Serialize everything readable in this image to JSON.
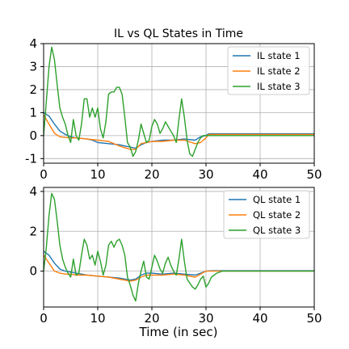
{
  "chart_data": [
    {
      "type": "line",
      "title": "IL vs QL States in Time",
      "xlabel": "",
      "ylabel": "",
      "xlim": [
        0,
        50
      ],
      "ylim": [
        -1.2,
        4.0
      ],
      "xticks": [
        0,
        10,
        20,
        30,
        40,
        50
      ],
      "yticks": [
        -1,
        0,
        1,
        2,
        3,
        4
      ],
      "grid": true,
      "legend_position": "upper-right",
      "series": [
        {
          "name": "IL state 1",
          "color": "#1f77b4",
          "x": [
            0,
            1,
            2,
            3,
            4,
            5,
            6,
            7,
            8,
            9,
            10,
            12,
            14,
            15,
            16,
            17,
            18,
            19,
            20,
            22,
            24,
            26,
            28,
            29,
            30,
            30.5,
            31,
            35,
            40,
            45,
            50
          ],
          "y": [
            1.0,
            0.85,
            0.5,
            0.2,
            0.05,
            -0.05,
            -0.1,
            -0.12,
            -0.15,
            -0.2,
            -0.3,
            -0.35,
            -0.4,
            -0.45,
            -0.5,
            -0.55,
            -0.4,
            -0.3,
            -0.25,
            -0.2,
            -0.2,
            -0.15,
            -0.2,
            -0.05,
            0.0,
            0.08,
            0.08,
            0.08,
            0.08,
            0.08,
            0.08
          ]
        },
        {
          "name": "IL state 2",
          "color": "#ff7f0e",
          "x": [
            0,
            1,
            2,
            3,
            4,
            5,
            6,
            8,
            10,
            12,
            14,
            16,
            17,
            18,
            19,
            20,
            22,
            24,
            26,
            28,
            29,
            30,
            30.5,
            31,
            35,
            40,
            45,
            50
          ],
          "y": [
            0.9,
            0.5,
            0.1,
            -0.05,
            -0.08,
            -0.1,
            -0.1,
            -0.15,
            -0.2,
            -0.25,
            -0.45,
            -0.6,
            -0.6,
            -0.35,
            -0.3,
            -0.25,
            -0.25,
            -0.2,
            -0.2,
            -0.35,
            -0.3,
            -0.1,
            0.05,
            0.05,
            0.05,
            0.05,
            0.05,
            0.05
          ]
        },
        {
          "name": "IL state 3",
          "color": "#2ca02c",
          "x": [
            0,
            0.5,
            1,
            1.5,
            2,
            2.5,
            3,
            3.5,
            4,
            4.5,
            5,
            5.5,
            6,
            6.5,
            7,
            7.5,
            8,
            8.5,
            9,
            9.5,
            10,
            10.5,
            11,
            11.5,
            12,
            12.5,
            13,
            13.5,
            14,
            14.5,
            15,
            15.5,
            16,
            16.5,
            17,
            17.5,
            18,
            18.5,
            19,
            19.5,
            20,
            20.5,
            21,
            21.5,
            22,
            22.5,
            23,
            23.5,
            24,
            24.5,
            25,
            25.5,
            26,
            26.5,
            27,
            27.5,
            28,
            28.5,
            29,
            29.5,
            30,
            30.5,
            31,
            31.5,
            32,
            35,
            40,
            45,
            50
          ],
          "y": [
            0.0,
            1.5,
            3.0,
            3.85,
            3.3,
            2.2,
            1.2,
            0.8,
            0.5,
            0.0,
            -0.3,
            0.7,
            0.0,
            -0.2,
            0.5,
            1.6,
            1.6,
            0.8,
            1.2,
            0.8,
            1.2,
            0.3,
            -0.1,
            0.6,
            1.8,
            1.9,
            1.9,
            2.1,
            2.1,
            1.8,
            0.8,
            -0.3,
            -0.5,
            -0.9,
            -0.7,
            -0.2,
            0.5,
            0.1,
            -0.3,
            -0.2,
            0.4,
            0.7,
            0.5,
            0.1,
            0.3,
            0.6,
            0.4,
            0.2,
            0.0,
            -0.3,
            0.7,
            1.6,
            0.8,
            -0.2,
            -0.8,
            -0.9,
            -0.6,
            -0.3,
            -0.1,
            0.0,
            0.0,
            0.0,
            0.0,
            0.0,
            0.0,
            0.0,
            0.0,
            0.0,
            0.0
          ]
        }
      ]
    },
    {
      "type": "line",
      "title": "",
      "xlabel": "Time (in sec)",
      "ylabel": "",
      "xlim": [
        0,
        50
      ],
      "ylim": [
        -1.8,
        4.2
      ],
      "xticks": [
        0,
        10,
        20,
        30,
        40,
        50
      ],
      "yticks": [
        0,
        2,
        4
      ],
      "grid": true,
      "legend_position": "upper-right",
      "series": [
        {
          "name": "QL state 1",
          "color": "#1f77b4",
          "x": [
            0,
            1,
            2,
            3,
            4,
            5,
            6,
            8,
            10,
            12,
            14,
            16,
            17,
            18,
            19,
            20,
            22,
            24,
            26,
            28,
            29,
            30,
            31,
            32,
            35,
            40,
            45,
            50
          ],
          "y": [
            1.0,
            0.8,
            0.4,
            0.1,
            0.0,
            -0.05,
            -0.1,
            -0.2,
            -0.25,
            -0.3,
            -0.35,
            -0.45,
            -0.4,
            -0.2,
            -0.1,
            -0.1,
            -0.15,
            -0.1,
            -0.15,
            -0.2,
            -0.1,
            0.0,
            0.02,
            0.02,
            0.02,
            0.02,
            0.02,
            0.02
          ]
        },
        {
          "name": "QL state 2",
          "color": "#ff7f0e",
          "x": [
            0,
            1,
            2,
            3,
            4,
            5,
            6,
            8,
            10,
            12,
            14,
            16,
            17,
            18,
            19,
            20,
            22,
            24,
            26,
            28,
            29,
            30,
            31,
            32,
            35,
            40,
            45,
            50
          ],
          "y": [
            0.8,
            0.4,
            0.0,
            -0.1,
            -0.15,
            -0.15,
            -0.2,
            -0.2,
            -0.25,
            -0.3,
            -0.4,
            -0.5,
            -0.45,
            -0.3,
            -0.2,
            -0.2,
            -0.2,
            -0.15,
            -0.2,
            -0.3,
            -0.15,
            0.0,
            0.0,
            0.0,
            0.0,
            0.0,
            0.0,
            0.0
          ]
        },
        {
          "name": "QL state 3",
          "color": "#2ca02c",
          "x": [
            0,
            0.5,
            1,
            1.5,
            2,
            2.5,
            3,
            3.5,
            4,
            4.5,
            5,
            5.5,
            6,
            6.5,
            7,
            7.5,
            8,
            8.5,
            9,
            9.5,
            10,
            10.5,
            11,
            11.5,
            12,
            12.5,
            13,
            13.5,
            14,
            14.5,
            15,
            15.5,
            16,
            16.5,
            17,
            17.5,
            18,
            18.5,
            19,
            19.5,
            20,
            20.5,
            21,
            21.5,
            22,
            22.5,
            23,
            23.5,
            24,
            24.5,
            25,
            25.5,
            26,
            26.5,
            27,
            27.5,
            28,
            28.5,
            29,
            29.5,
            30,
            30.5,
            31,
            32,
            33,
            34,
            35,
            40,
            45,
            50
          ],
          "y": [
            0.0,
            1.2,
            2.8,
            3.9,
            3.6,
            2.5,
            1.3,
            0.6,
            0.2,
            -0.1,
            -0.3,
            0.6,
            -0.2,
            -0.1,
            0.8,
            1.6,
            1.3,
            0.6,
            0.8,
            0.3,
            1.0,
            0.5,
            -0.2,
            0.3,
            1.3,
            1.5,
            1.2,
            1.5,
            1.6,
            1.3,
            0.8,
            -0.3,
            -0.7,
            -1.2,
            -1.5,
            -0.6,
            0.0,
            0.5,
            -0.3,
            -0.4,
            0.2,
            0.8,
            0.5,
            0.1,
            -0.1,
            0.4,
            0.7,
            0.3,
            0.0,
            -0.2,
            0.6,
            1.6,
            0.5,
            -0.4,
            -0.6,
            -0.8,
            -0.9,
            -0.7,
            -0.4,
            -0.25,
            -0.8,
            -0.6,
            -0.3,
            -0.1,
            0.0,
            0.0,
            0.0,
            0.0,
            0.0,
            0.0
          ]
        }
      ]
    }
  ]
}
